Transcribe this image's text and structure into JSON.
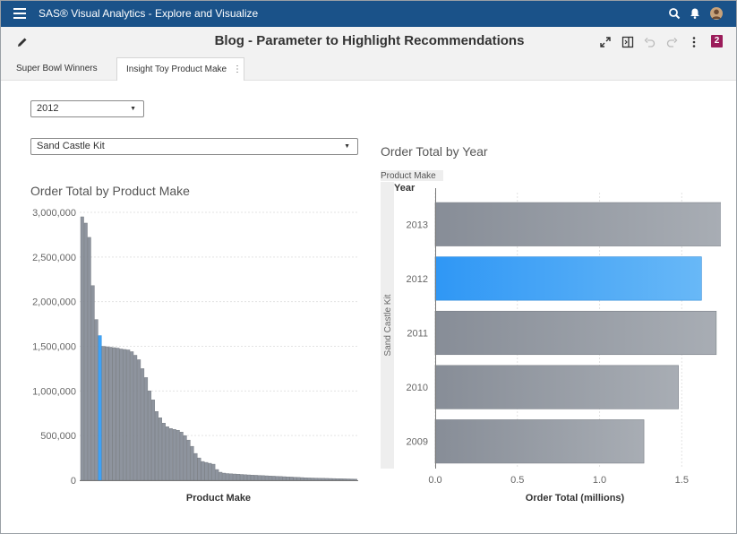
{
  "app": {
    "title": "SAS® Visual Analytics - Explore and Visualize",
    "icons": [
      "menu-icon",
      "search-icon",
      "notification-bell-icon",
      "user-avatar"
    ]
  },
  "toolbar": {
    "report_title": "Blog - Parameter to Highlight Recommendations",
    "badge_count": "2",
    "icons": [
      "edit-pencil-icon",
      "maximize-icon",
      "panel-toggle-icon",
      "undo-icon",
      "redo-icon",
      "more-vertical-icon"
    ]
  },
  "tabs": [
    {
      "label": "Super Bowl Winners",
      "active": false
    },
    {
      "label": "Insight Toy Product Make",
      "active": true
    }
  ],
  "controls": {
    "year_dropdown": {
      "value": "2012"
    },
    "product_dropdown": {
      "value": "Sand Castle Kit"
    }
  },
  "colors": {
    "bar_gray": "#8e949e",
    "highlight_blue": "#3ea2f7",
    "app_bar": "#1a5289",
    "badge": "#9b1c5a"
  },
  "chart_data": [
    {
      "type": "bar",
      "title": "Order Total by Product Make",
      "xlabel": "Product Make",
      "ylabel": "",
      "ylim": [
        0,
        3000000
      ],
      "yticks": [
        "0",
        "500,000",
        "1,000,000",
        "1,500,000",
        "2,000,000",
        "2,500,000",
        "3,000,000"
      ],
      "yticks_values": [
        0,
        500000,
        1000000,
        1500000,
        2000000,
        2500000,
        3000000
      ],
      "highlight_index": 5,
      "values": [
        2950000,
        2880000,
        2720000,
        2180000,
        1800000,
        1620000,
        1500000,
        1495000,
        1490000,
        1485000,
        1480000,
        1470000,
        1465000,
        1460000,
        1440000,
        1400000,
        1350000,
        1250000,
        1150000,
        1000000,
        900000,
        770000,
        700000,
        640000,
        600000,
        580000,
        570000,
        560000,
        540000,
        500000,
        450000,
        380000,
        300000,
        250000,
        210000,
        200000,
        190000,
        180000,
        120000,
        90000,
        80000,
        75000,
        72000,
        70000,
        68000,
        65000,
        62000,
        60000,
        58000,
        56000,
        54000,
        52000,
        50000,
        48000,
        46000,
        44000,
        42000,
        40000,
        38000,
        36000,
        34000,
        32000,
        30000,
        28000,
        26000,
        25000,
        24000,
        23000,
        22000,
        21000,
        20000,
        19000,
        18000,
        17000,
        16000,
        15000,
        14000,
        13000
      ]
    },
    {
      "type": "bar",
      "orientation": "horizontal",
      "title": "Order Total by Year",
      "group_label": "Product Make",
      "group_value": "Sand Castle Kit",
      "category_header": "Year",
      "xlabel": "Order Total (millions)",
      "xlim": [
        0,
        1.7
      ],
      "xticks": [
        "0.0",
        "0.5",
        "1.0",
        "1.5"
      ],
      "xticks_values": [
        0,
        0.5,
        1.0,
        1.5
      ],
      "categories": [
        "2013",
        "2012",
        "2011",
        "2010",
        "2009"
      ],
      "values": [
        1.74,
        1.62,
        1.71,
        1.48,
        1.27
      ],
      "highlight_category": "2012"
    }
  ]
}
